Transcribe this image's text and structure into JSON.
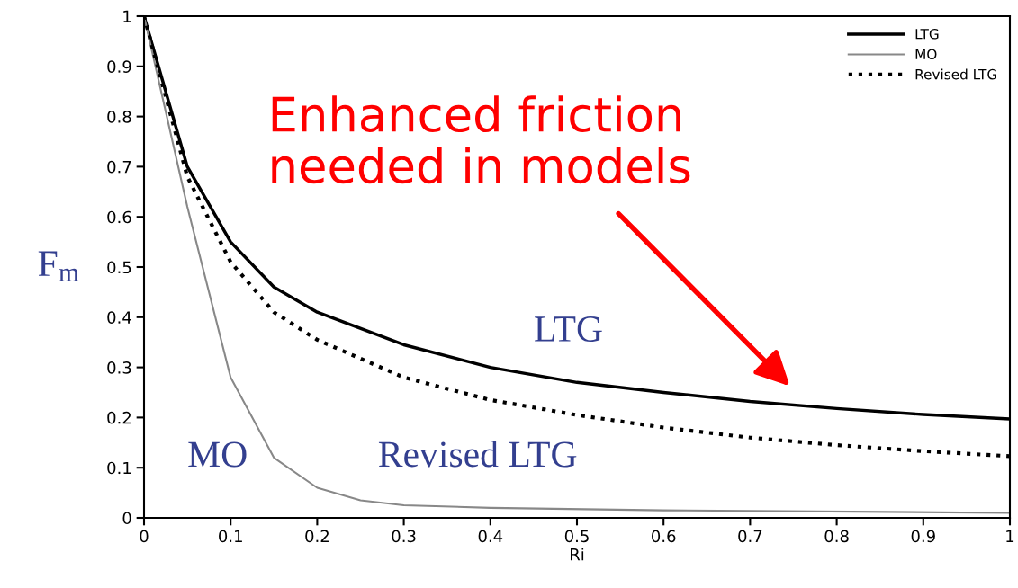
{
  "chart_data": {
    "type": "line",
    "xlabel": "Ri",
    "ylabel": "F$_{m}$",
    "xlim": [
      0,
      1
    ],
    "ylim": [
      0,
      1
    ],
    "xticks": [
      0,
      0.1,
      0.2,
      0.3,
      0.4,
      0.5,
      0.6,
      0.7,
      0.8,
      0.9,
      1
    ],
    "yticks": [
      0,
      0.1,
      0.2,
      0.3,
      0.4,
      0.5,
      0.6,
      0.7,
      0.8,
      0.9,
      1
    ],
    "grid": false,
    "legend": "top right",
    "marker": "none",
    "series": [
      {
        "name": "LTG",
        "color": "#000000",
        "line_style": "solid",
        "x": [
          0,
          0.05,
          0.1,
          0.15,
          0.2,
          0.3,
          0.4,
          0.5,
          0.6,
          0.7,
          0.8,
          0.9,
          1
        ],
        "values": [
          1,
          0.7,
          0.55,
          0.46,
          0.41,
          0.345,
          0.3,
          0.27,
          0.25,
          0.232,
          0.218,
          0.206,
          0.197
        ]
      },
      {
        "name": "MO",
        "color": "#888888",
        "line_style": "solid",
        "x": [
          0,
          0.05,
          0.1,
          0.15,
          0.2,
          0.25,
          0.3,
          0.4,
          0.6,
          1
        ],
        "values": [
          1,
          0.62,
          0.28,
          0.12,
          0.06,
          0.035,
          0.025,
          0.02,
          0.015,
          0.01
        ]
      },
      {
        "name": "Revised LTG",
        "color": "#000000",
        "line_style": "dotted",
        "x": [
          0,
          0.05,
          0.1,
          0.15,
          0.2,
          0.3,
          0.4,
          0.5,
          0.6,
          0.7,
          0.8,
          0.9,
          1
        ],
        "values": [
          1,
          0.68,
          0.51,
          0.41,
          0.355,
          0.28,
          0.235,
          0.205,
          0.18,
          0.16,
          0.145,
          0.133,
          0.123
        ]
      }
    ],
    "annotations": [
      "LTG",
      "MO",
      "Revised LTG",
      "Enhanced friction\nneeded in models"
    ]
  }
}
